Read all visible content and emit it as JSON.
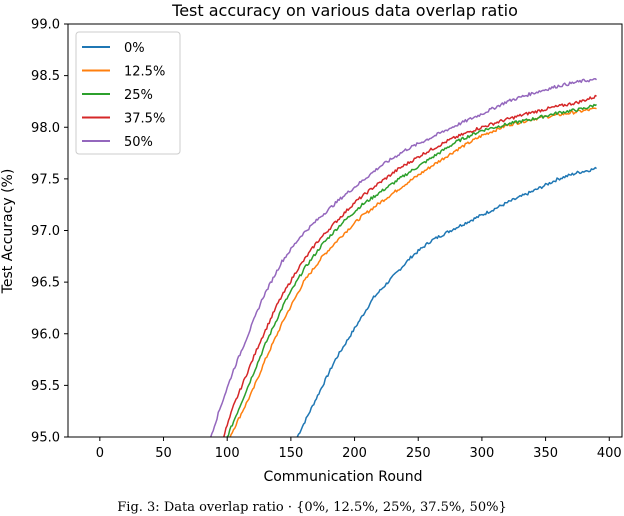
{
  "chart_data": {
    "type": "line",
    "title": "Test accuracy on various data overlap ratio",
    "xlabel": "Communication Round",
    "ylabel": "Test Accuracy (%)",
    "xlim": [
      -25,
      410
    ],
    "ylim": [
      95.0,
      99.0
    ],
    "xticks": [
      "0",
      "50",
      "100",
      "150",
      "200",
      "250",
      "300",
      "350",
      "400"
    ],
    "xtick_values": [
      0,
      50,
      100,
      150,
      200,
      250,
      300,
      350,
      400
    ],
    "yticks": [
      "95.0",
      "95.5",
      "96.0",
      "96.5",
      "97.0",
      "97.5",
      "98.0",
      "98.5",
      "99.0"
    ],
    "ytick_values": [
      95.0,
      95.5,
      96.0,
      96.5,
      97.0,
      97.5,
      98.0,
      98.5,
      99.0
    ],
    "grid": false,
    "legend_position": "top-left",
    "series": [
      {
        "name": "0%",
        "color": "#1f77b4",
        "x": [
          155,
          165,
          175,
          185,
          200,
          215,
          230,
          245,
          260,
          280,
          300,
          320,
          340,
          360,
          375,
          390
        ],
        "y": [
          95.0,
          95.25,
          95.5,
          95.75,
          96.05,
          96.35,
          96.55,
          96.75,
          96.9,
          97.03,
          97.15,
          97.27,
          97.38,
          97.5,
          97.56,
          97.6
        ]
      },
      {
        "name": "12.5%",
        "color": "#ff7f0e",
        "x": [
          102,
          110,
          120,
          130,
          145,
          160,
          175,
          190,
          205,
          220,
          240,
          260,
          280,
          300,
          320,
          340,
          360,
          380,
          390
        ],
        "y": [
          95.0,
          95.2,
          95.45,
          95.75,
          96.15,
          96.5,
          96.75,
          96.95,
          97.13,
          97.27,
          97.45,
          97.62,
          97.78,
          97.92,
          98.02,
          98.08,
          98.12,
          98.16,
          98.18
        ]
      },
      {
        "name": "25%",
        "color": "#2ca02c",
        "x": [
          100,
          110,
          120,
          130,
          145,
          160,
          175,
          190,
          205,
          220,
          240,
          260,
          280,
          300,
          320,
          340,
          360,
          380,
          390
        ],
        "y": [
          95.0,
          95.3,
          95.6,
          95.9,
          96.3,
          96.62,
          96.87,
          97.07,
          97.24,
          97.37,
          97.54,
          97.7,
          97.86,
          97.97,
          98.03,
          98.08,
          98.14,
          98.18,
          98.22
        ]
      },
      {
        "name": "37.5%",
        "color": "#d62728",
        "x": [
          97,
          105,
          115,
          125,
          140,
          155,
          170,
          185,
          200,
          215,
          235,
          255,
          275,
          295,
          315,
          335,
          355,
          375,
          390
        ],
        "y": [
          95.0,
          95.3,
          95.6,
          95.9,
          96.3,
          96.62,
          96.88,
          97.08,
          97.27,
          97.42,
          97.6,
          97.75,
          97.88,
          97.98,
          98.06,
          98.13,
          98.19,
          98.24,
          98.3
        ]
      },
      {
        "name": "50%",
        "color": "#9467bd",
        "x": [
          87,
          95,
          105,
          115,
          128,
          143,
          158,
          173,
          190,
          205,
          220,
          240,
          260,
          280,
          300,
          320,
          340,
          360,
          380,
          390
        ],
        "y": [
          95.0,
          95.3,
          95.65,
          95.95,
          96.35,
          96.7,
          96.95,
          97.13,
          97.32,
          97.47,
          97.62,
          97.78,
          97.9,
          98.02,
          98.13,
          98.25,
          98.33,
          98.4,
          98.45,
          98.46
        ]
      }
    ]
  },
  "caption": "Fig. 3: Data overlap ratio · {0%, 12.5%, 25%, 37.5%, 50%}"
}
